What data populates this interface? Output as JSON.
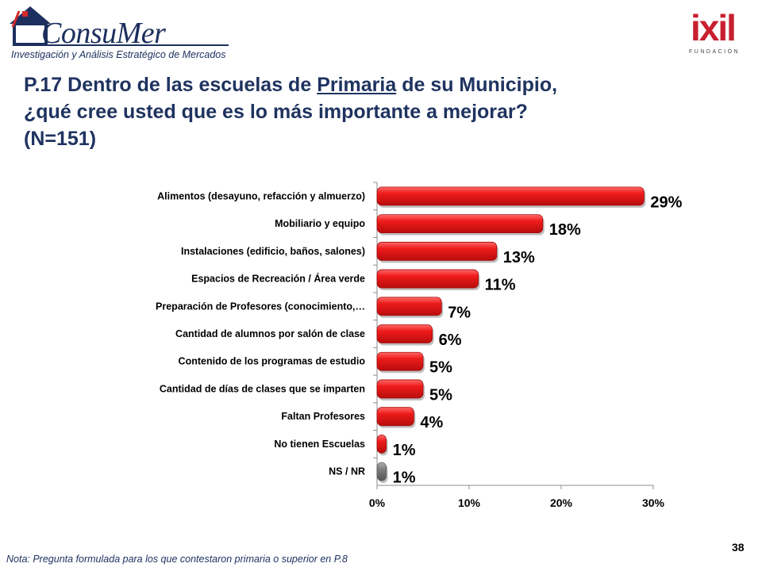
{
  "header": {
    "logo_left": {
      "brand": "ConsuMer",
      "tagline": "Investigación y Análisis Estratégico de Mercados"
    },
    "logo_right": {
      "brand": "ixil",
      "tagline": "FUNDACIÓN"
    }
  },
  "title": {
    "part1": "P.17 Dentro de las escuelas de ",
    "underlined": "Primaria",
    "part2": " de su Municipio,",
    "line2": "¿qué cree usted que es lo más importante a mejorar?",
    "line3": "(N=151)"
  },
  "chart_data": {
    "type": "bar",
    "orientation": "horizontal",
    "categories": [
      "Alimentos  (desayuno, refacción y almuerzo)",
      "Mobiliario y equipo",
      "Instalaciones (edificio, baños, salones)",
      "Espacios de Recreación / Área verde",
      "Preparación de Profesores (conocimiento,…",
      "Cantidad de alumnos por salón de clase",
      "Contenido de los programas de estudio",
      "Cantidad de días de clases que se imparten",
      "Faltan Profesores",
      "No tienen Escuelas",
      "NS / NR"
    ],
    "values": [
      29,
      18,
      13,
      11,
      7,
      6,
      5,
      5,
      4,
      1,
      1
    ],
    "data_labels": [
      "29%",
      "18%",
      "13%",
      "11%",
      "7%",
      "6%",
      "5%",
      "5%",
      "4%",
      "1%",
      "1%"
    ],
    "bar_colors": [
      "#e8141a",
      "#e8141a",
      "#e8141a",
      "#e8141a",
      "#e8141a",
      "#e8141a",
      "#e8141a",
      "#e8141a",
      "#e8141a",
      "#e8141a",
      "#7f7f7f"
    ],
    "xlim": [
      0,
      30
    ],
    "x_ticks": [
      0,
      10,
      20,
      30
    ],
    "x_tick_labels": [
      "0%",
      "10%",
      "20%",
      "30%"
    ],
    "grid": false,
    "legend": "none"
  },
  "footer": {
    "note": "Nota: Pregunta formulada para los que contestaron primaria o superior en P.8",
    "page_number": "38"
  }
}
